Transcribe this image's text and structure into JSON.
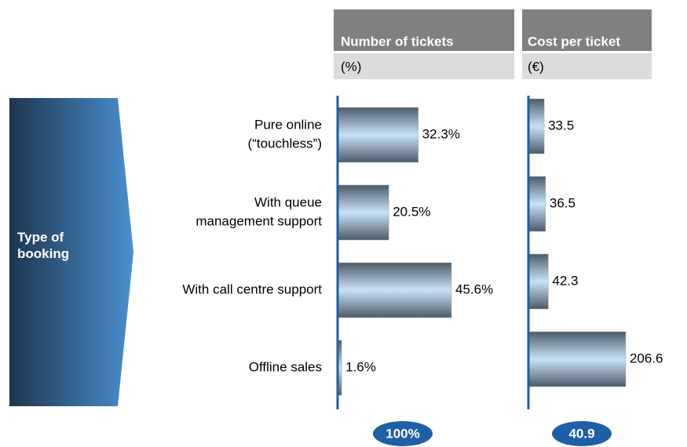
{
  "chart_data": [
    {
      "type": "bar",
      "title": "Number of tickets",
      "subtitle": "(%)",
      "row_title": "Type of booking",
      "categories": [
        [
          "Pure online",
          "(“touchless”)"
        ],
        [
          "With queue",
          "management support"
        ],
        [
          "With call centre support"
        ],
        [
          "Offline sales"
        ]
      ],
      "values": [
        32.3,
        20.5,
        45.6,
        1.6
      ],
      "value_labels": [
        "32.3%",
        "20.5%",
        "45.6%",
        "1.6%"
      ],
      "xlim": [
        0,
        50
      ],
      "total": {
        "value": 100,
        "label": "100%"
      },
      "color": "#1f5fa5"
    },
    {
      "type": "bar",
      "title": "Cost per ticket",
      "subtitle": "(€)",
      "values": [
        33.5,
        36.5,
        42.3,
        206.6
      ],
      "xlim": [
        0,
        230
      ],
      "total": 40.9,
      "color": "#1f5fa5"
    }
  ]
}
